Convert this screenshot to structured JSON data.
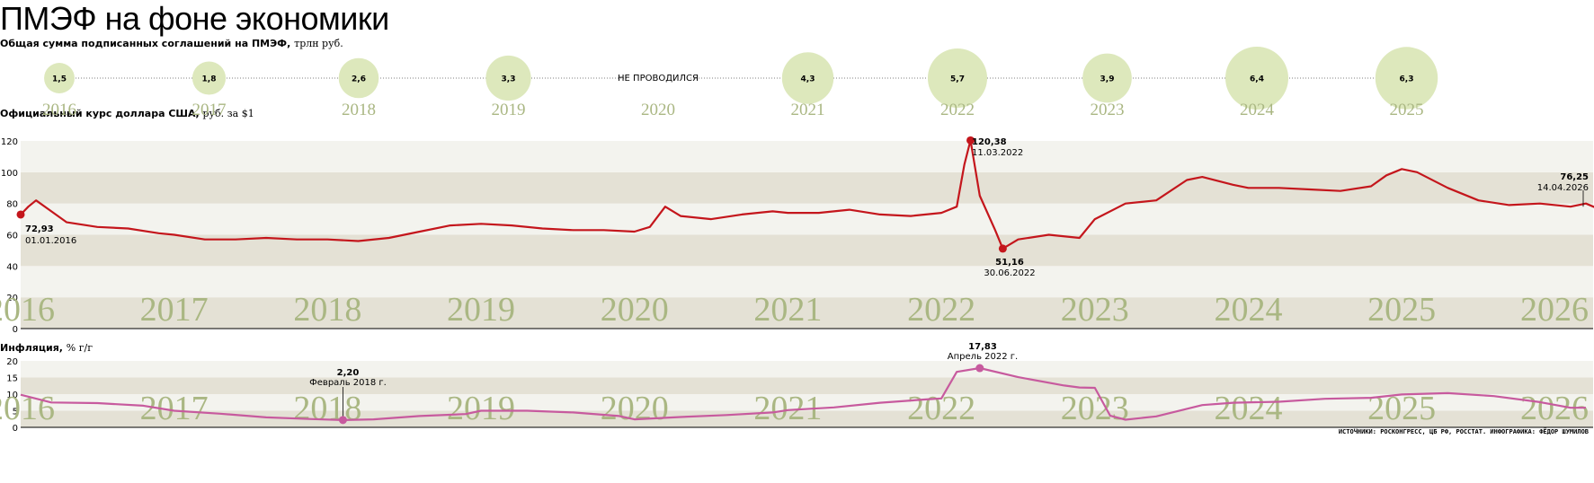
{
  "title": "ПМЭФ на фоне экономики",
  "agreements": {
    "label": "Общая сумма подписанных соглашений на ПМЭФ,",
    "unit": "трлн руб.",
    "not_held": "НЕ ПРОВОДИЛСЯ"
  },
  "usd": {
    "label": "Официальный курс доллара США,",
    "unit": "руб. за $1"
  },
  "inflation": {
    "label": "Инфляция,",
    "unit": "% г/г"
  },
  "credits": "ИСТОЧНИКИ: РОСКОНГРЕСС, ЦБ РФ, РОССТАТ. ИНФОГРАФИКА: ФЁДОР ШУМИЛОВ",
  "colors": {
    "bubble": "#dde8bc",
    "year_text": "#aab783",
    "usd_line": "#c4161c",
    "inflation_line": "#c75a9e",
    "band_dark": "#e4e1d5",
    "band_light": "#f3f3ee"
  },
  "chart_data": [
    {
      "type": "scatter",
      "subtype": "bubble",
      "title": "Общая сумма подписанных соглашений на ПМЭФ, трлн руб.",
      "categories": [
        "2016",
        "2017",
        "2018",
        "2019",
        "2020",
        "2021",
        "2022",
        "2023",
        "2024",
        "2025"
      ],
      "values": [
        1.5,
        1.8,
        2.6,
        3.3,
        null,
        4.3,
        5.7,
        3.9,
        6.4,
        6.3
      ],
      "value_labels": [
        "1,5",
        "1,8",
        "2,6",
        "3,3",
        "",
        "4,3",
        "5,7",
        "3,9",
        "6,4",
        "6,3"
      ],
      "annotations": [
        {
          "category": "2020",
          "text": "НЕ ПРОВОДИЛСЯ"
        }
      ]
    },
    {
      "type": "line",
      "title": "Официальный курс доллара США, руб. за $1",
      "x_ticks": [
        "2016",
        "2017",
        "2018",
        "2019",
        "2020",
        "2021",
        "2022",
        "2023",
        "2024",
        "2025",
        "2026"
      ],
      "y_ticks": [
        0,
        20,
        40,
        60,
        80,
        100,
        120
      ],
      "ylim": [
        0,
        120
      ],
      "grid": "horizontal bands",
      "x": [
        2016.0,
        2016.05,
        2016.1,
        2016.2,
        2016.3,
        2016.5,
        2016.7,
        2016.9,
        2017.0,
        2017.2,
        2017.4,
        2017.6,
        2017.8,
        2018.0,
        2018.2,
        2018.4,
        2018.6,
        2018.8,
        2019.0,
        2019.2,
        2019.4,
        2019.6,
        2019.8,
        2020.0,
        2020.1,
        2020.2,
        2020.3,
        2020.5,
        2020.7,
        2020.9,
        2021.0,
        2021.2,
        2021.4,
        2021.6,
        2021.8,
        2022.0,
        2022.1,
        2022.15,
        2022.19,
        2022.25,
        2022.35,
        2022.4,
        2022.5,
        2022.7,
        2022.9,
        2023.0,
        2023.2,
        2023.4,
        2023.6,
        2023.7,
        2023.9,
        2024.0,
        2024.2,
        2024.4,
        2024.6,
        2024.8,
        2024.9,
        2025.0,
        2025.1,
        2025.3,
        2025.5,
        2025.7,
        2025.9,
        2026.1,
        2026.2,
        2026.29
      ],
      "series": [
        {
          "values": [
            72.93,
            78,
            82,
            75,
            68,
            65,
            64,
            61,
            60,
            57,
            57,
            58,
            57,
            57,
            56,
            58,
            62,
            66,
            67,
            66,
            64,
            63,
            63,
            62,
            65,
            78,
            72,
            70,
            73,
            75,
            74,
            74,
            76,
            73,
            72,
            74,
            78,
            105,
            120.38,
            85,
            63,
            51.16,
            57,
            60,
            58,
            70,
            80,
            82,
            95,
            97,
            92,
            90,
            90,
            89,
            88,
            91,
            98,
            102,
            100,
            90,
            82,
            79,
            80,
            78,
            80,
            76.25
          ]
        }
      ],
      "annotations": [
        {
          "value": "72,93",
          "date": "01.01.2016"
        },
        {
          "value": "120,38",
          "date": "11.03.2022"
        },
        {
          "value": "51,16",
          "date": "30.06.2022"
        },
        {
          "value": "76,25",
          "date": "14.04.2026"
        }
      ]
    },
    {
      "type": "line",
      "title": "Инфляция, % г/г",
      "x_ticks": [
        "2016",
        "2017",
        "2018",
        "2019",
        "2020",
        "2021",
        "2022",
        "2023",
        "2024",
        "2025",
        "2026"
      ],
      "y_ticks": [
        0,
        5,
        10,
        15,
        20
      ],
      "ylim": [
        0,
        20
      ],
      "grid": "horizontal bands",
      "x": [
        2016.0,
        2016.2,
        2016.5,
        2016.8,
        2017.0,
        2017.3,
        2017.6,
        2017.9,
        2018.1,
        2018.3,
        2018.6,
        2018.9,
        2019.0,
        2019.3,
        2019.6,
        2019.9,
        2020.0,
        2020.3,
        2020.6,
        2020.9,
        2021.0,
        2021.3,
        2021.6,
        2021.9,
        2022.0,
        2022.1,
        2022.25,
        2022.5,
        2022.8,
        2022.9,
        2023.0,
        2023.1,
        2023.2,
        2023.4,
        2023.7,
        2023.9,
        2024.2,
        2024.5,
        2024.8,
        2025.0,
        2025.3,
        2025.6,
        2025.9,
        2026.1,
        2026.2
      ],
      "series": [
        {
          "values": [
            9.8,
            7.5,
            7.3,
            6.5,
            5.0,
            4.1,
            3.0,
            2.5,
            2.2,
            2.4,
            3.4,
            4.0,
            5.0,
            5.0,
            4.5,
            3.4,
            2.4,
            3.1,
            3.7,
            4.5,
            5.2,
            6.0,
            7.4,
            8.4,
            8.7,
            16.7,
            17.83,
            15.1,
            12.6,
            12.0,
            11.9,
            3.5,
            2.3,
            3.3,
            6.7,
            7.4,
            7.7,
            8.6,
            8.9,
            9.9,
            10.3,
            9.4,
            7.6,
            5.9,
            5.9
          ]
        }
      ],
      "annotations": [
        {
          "value": "2,20",
          "date": "Февраль 2018 г."
        },
        {
          "value": "17,83",
          "date": "Апрель 2022 г."
        }
      ]
    }
  ]
}
